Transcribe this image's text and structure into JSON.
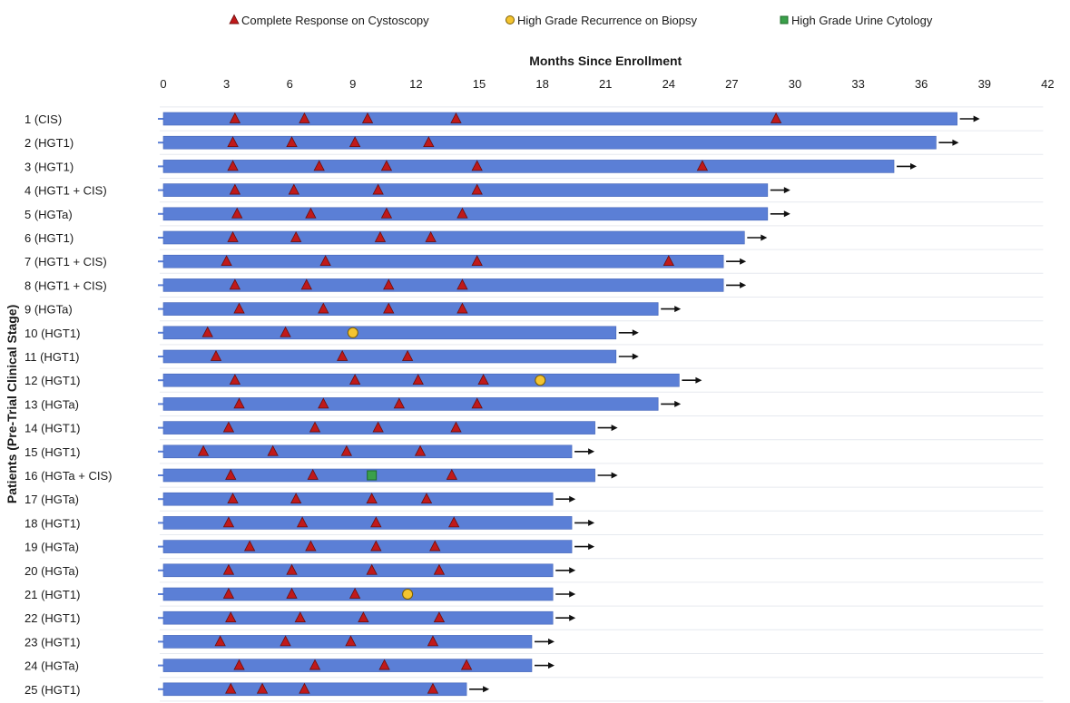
{
  "chart_data": {
    "type": "swimmer",
    "title": "",
    "xlabel": "Months Since Enrollment",
    "ylabel": "Patients (Pre-Trial Clinical Stage)",
    "xlim": [
      0,
      42
    ],
    "xticks": [
      0,
      3,
      6,
      9,
      12,
      15,
      18,
      21,
      24,
      27,
      30,
      33,
      36,
      39,
      42
    ],
    "legend_position": "top",
    "bar_color": "#5b7fd6",
    "legend": [
      {
        "name": "Complete Response on Cystoscopy",
        "marker": "triangle",
        "color": "#c0191a"
      },
      {
        "name": "High Grade Recurrence on Biopsy",
        "marker": "circle",
        "color": "#f4c430"
      },
      {
        "name": "High Grade Urine Cytology",
        "marker": "square",
        "color": "#3aa04a"
      }
    ],
    "patients": [
      {
        "label": "1 (CIS)",
        "duration": 37.7,
        "ongoing": true,
        "cr": [
          3.4,
          6.7,
          9.7,
          13.9,
          29.1
        ],
        "hgr": [],
        "cyt": []
      },
      {
        "label": "2 (HGT1)",
        "duration": 36.7,
        "ongoing": true,
        "cr": [
          3.3,
          6.1,
          9.1,
          12.6
        ],
        "hgr": [],
        "cyt": []
      },
      {
        "label": "3 (HGT1)",
        "duration": 34.7,
        "ongoing": true,
        "cr": [
          3.3,
          7.4,
          10.6,
          14.9,
          25.6
        ],
        "hgr": [],
        "cyt": []
      },
      {
        "label": "4 (HGT1 + CIS)",
        "duration": 28.7,
        "ongoing": true,
        "cr": [
          3.4,
          6.2,
          10.2,
          14.9
        ],
        "hgr": [],
        "cyt": []
      },
      {
        "label": "5 (HGTa)",
        "duration": 28.7,
        "ongoing": true,
        "cr": [
          3.5,
          7.0,
          10.6,
          14.2
        ],
        "hgr": [],
        "cyt": []
      },
      {
        "label": "6 (HGT1)",
        "duration": 27.6,
        "ongoing": true,
        "cr": [
          3.3,
          6.3,
          10.3,
          12.7
        ],
        "hgr": [],
        "cyt": []
      },
      {
        "label": "7 (HGT1 + CIS)",
        "duration": 26.6,
        "ongoing": true,
        "cr": [
          3.0,
          7.7,
          14.9,
          24.0
        ],
        "hgr": [],
        "cyt": []
      },
      {
        "label": "8 (HGT1 + CIS)",
        "duration": 26.6,
        "ongoing": true,
        "cr": [
          3.4,
          6.8,
          10.7,
          14.2
        ],
        "hgr": [],
        "cyt": []
      },
      {
        "label": "9 (HGTa)",
        "duration": 23.5,
        "ongoing": true,
        "cr": [
          3.6,
          7.6,
          10.7,
          14.2
        ],
        "hgr": [],
        "cyt": []
      },
      {
        "label": "10 (HGT1)",
        "duration": 21.5,
        "ongoing": true,
        "cr": [
          2.1,
          5.8
        ],
        "hgr": [
          9.0
        ],
        "cyt": []
      },
      {
        "label": "11 (HGT1)",
        "duration": 21.5,
        "ongoing": true,
        "cr": [
          2.5,
          8.5,
          11.6
        ],
        "hgr": [],
        "cyt": []
      },
      {
        "label": "12 (HGT1)",
        "duration": 24.5,
        "ongoing": true,
        "cr": [
          3.4,
          9.1,
          12.1,
          15.2
        ],
        "hgr": [
          17.9
        ],
        "cyt": []
      },
      {
        "label": "13 (HGTa)",
        "duration": 23.5,
        "ongoing": true,
        "cr": [
          3.6,
          7.6,
          11.2,
          14.9
        ],
        "hgr": [],
        "cyt": []
      },
      {
        "label": "14 (HGT1)",
        "duration": 20.5,
        "ongoing": true,
        "cr": [
          3.1,
          7.2,
          10.2,
          13.9
        ],
        "hgr": [],
        "cyt": []
      },
      {
        "label": "15 (HGT1)",
        "duration": 19.4,
        "ongoing": true,
        "cr": [
          1.9,
          5.2,
          8.7,
          12.2
        ],
        "hgr": [],
        "cyt": []
      },
      {
        "label": "16 (HGTa + CIS)",
        "duration": 20.5,
        "ongoing": true,
        "cr": [
          3.2,
          7.1,
          13.7
        ],
        "hgr": [],
        "cyt": [
          9.9
        ]
      },
      {
        "label": "17 (HGTa)",
        "duration": 18.5,
        "ongoing": true,
        "cr": [
          3.3,
          6.3,
          9.9,
          12.5
        ],
        "hgr": [],
        "cyt": []
      },
      {
        "label": "18 (HGT1)",
        "duration": 19.4,
        "ongoing": true,
        "cr": [
          3.1,
          6.6,
          10.1,
          13.8
        ],
        "hgr": [],
        "cyt": []
      },
      {
        "label": "19 (HGTa)",
        "duration": 19.4,
        "ongoing": true,
        "cr": [
          4.1,
          7.0,
          10.1,
          12.9
        ],
        "hgr": [],
        "cyt": []
      },
      {
        "label": "20 (HGTa)",
        "duration": 18.5,
        "ongoing": true,
        "cr": [
          3.1,
          6.1,
          9.9,
          13.1
        ],
        "hgr": [],
        "cyt": []
      },
      {
        "label": "21 (HGT1)",
        "duration": 18.5,
        "ongoing": true,
        "cr": [
          3.1,
          6.1,
          9.1
        ],
        "hgr": [
          11.6
        ],
        "cyt": []
      },
      {
        "label": "22 (HGT1)",
        "duration": 18.5,
        "ongoing": true,
        "cr": [
          3.2,
          6.5,
          9.5,
          13.1
        ],
        "hgr": [],
        "cyt": []
      },
      {
        "label": "23 (HGT1)",
        "duration": 17.5,
        "ongoing": true,
        "cr": [
          2.7,
          5.8,
          8.9,
          12.8
        ],
        "hgr": [],
        "cyt": []
      },
      {
        "label": "24 (HGTa)",
        "duration": 17.5,
        "ongoing": true,
        "cr": [
          3.6,
          7.2,
          10.5,
          14.4
        ],
        "hgr": [],
        "cyt": []
      },
      {
        "label": "25 (HGT1)",
        "duration": 14.4,
        "ongoing": true,
        "cr": [
          3.2,
          4.7,
          6.7,
          12.8
        ],
        "hgr": [],
        "cyt": []
      }
    ]
  }
}
